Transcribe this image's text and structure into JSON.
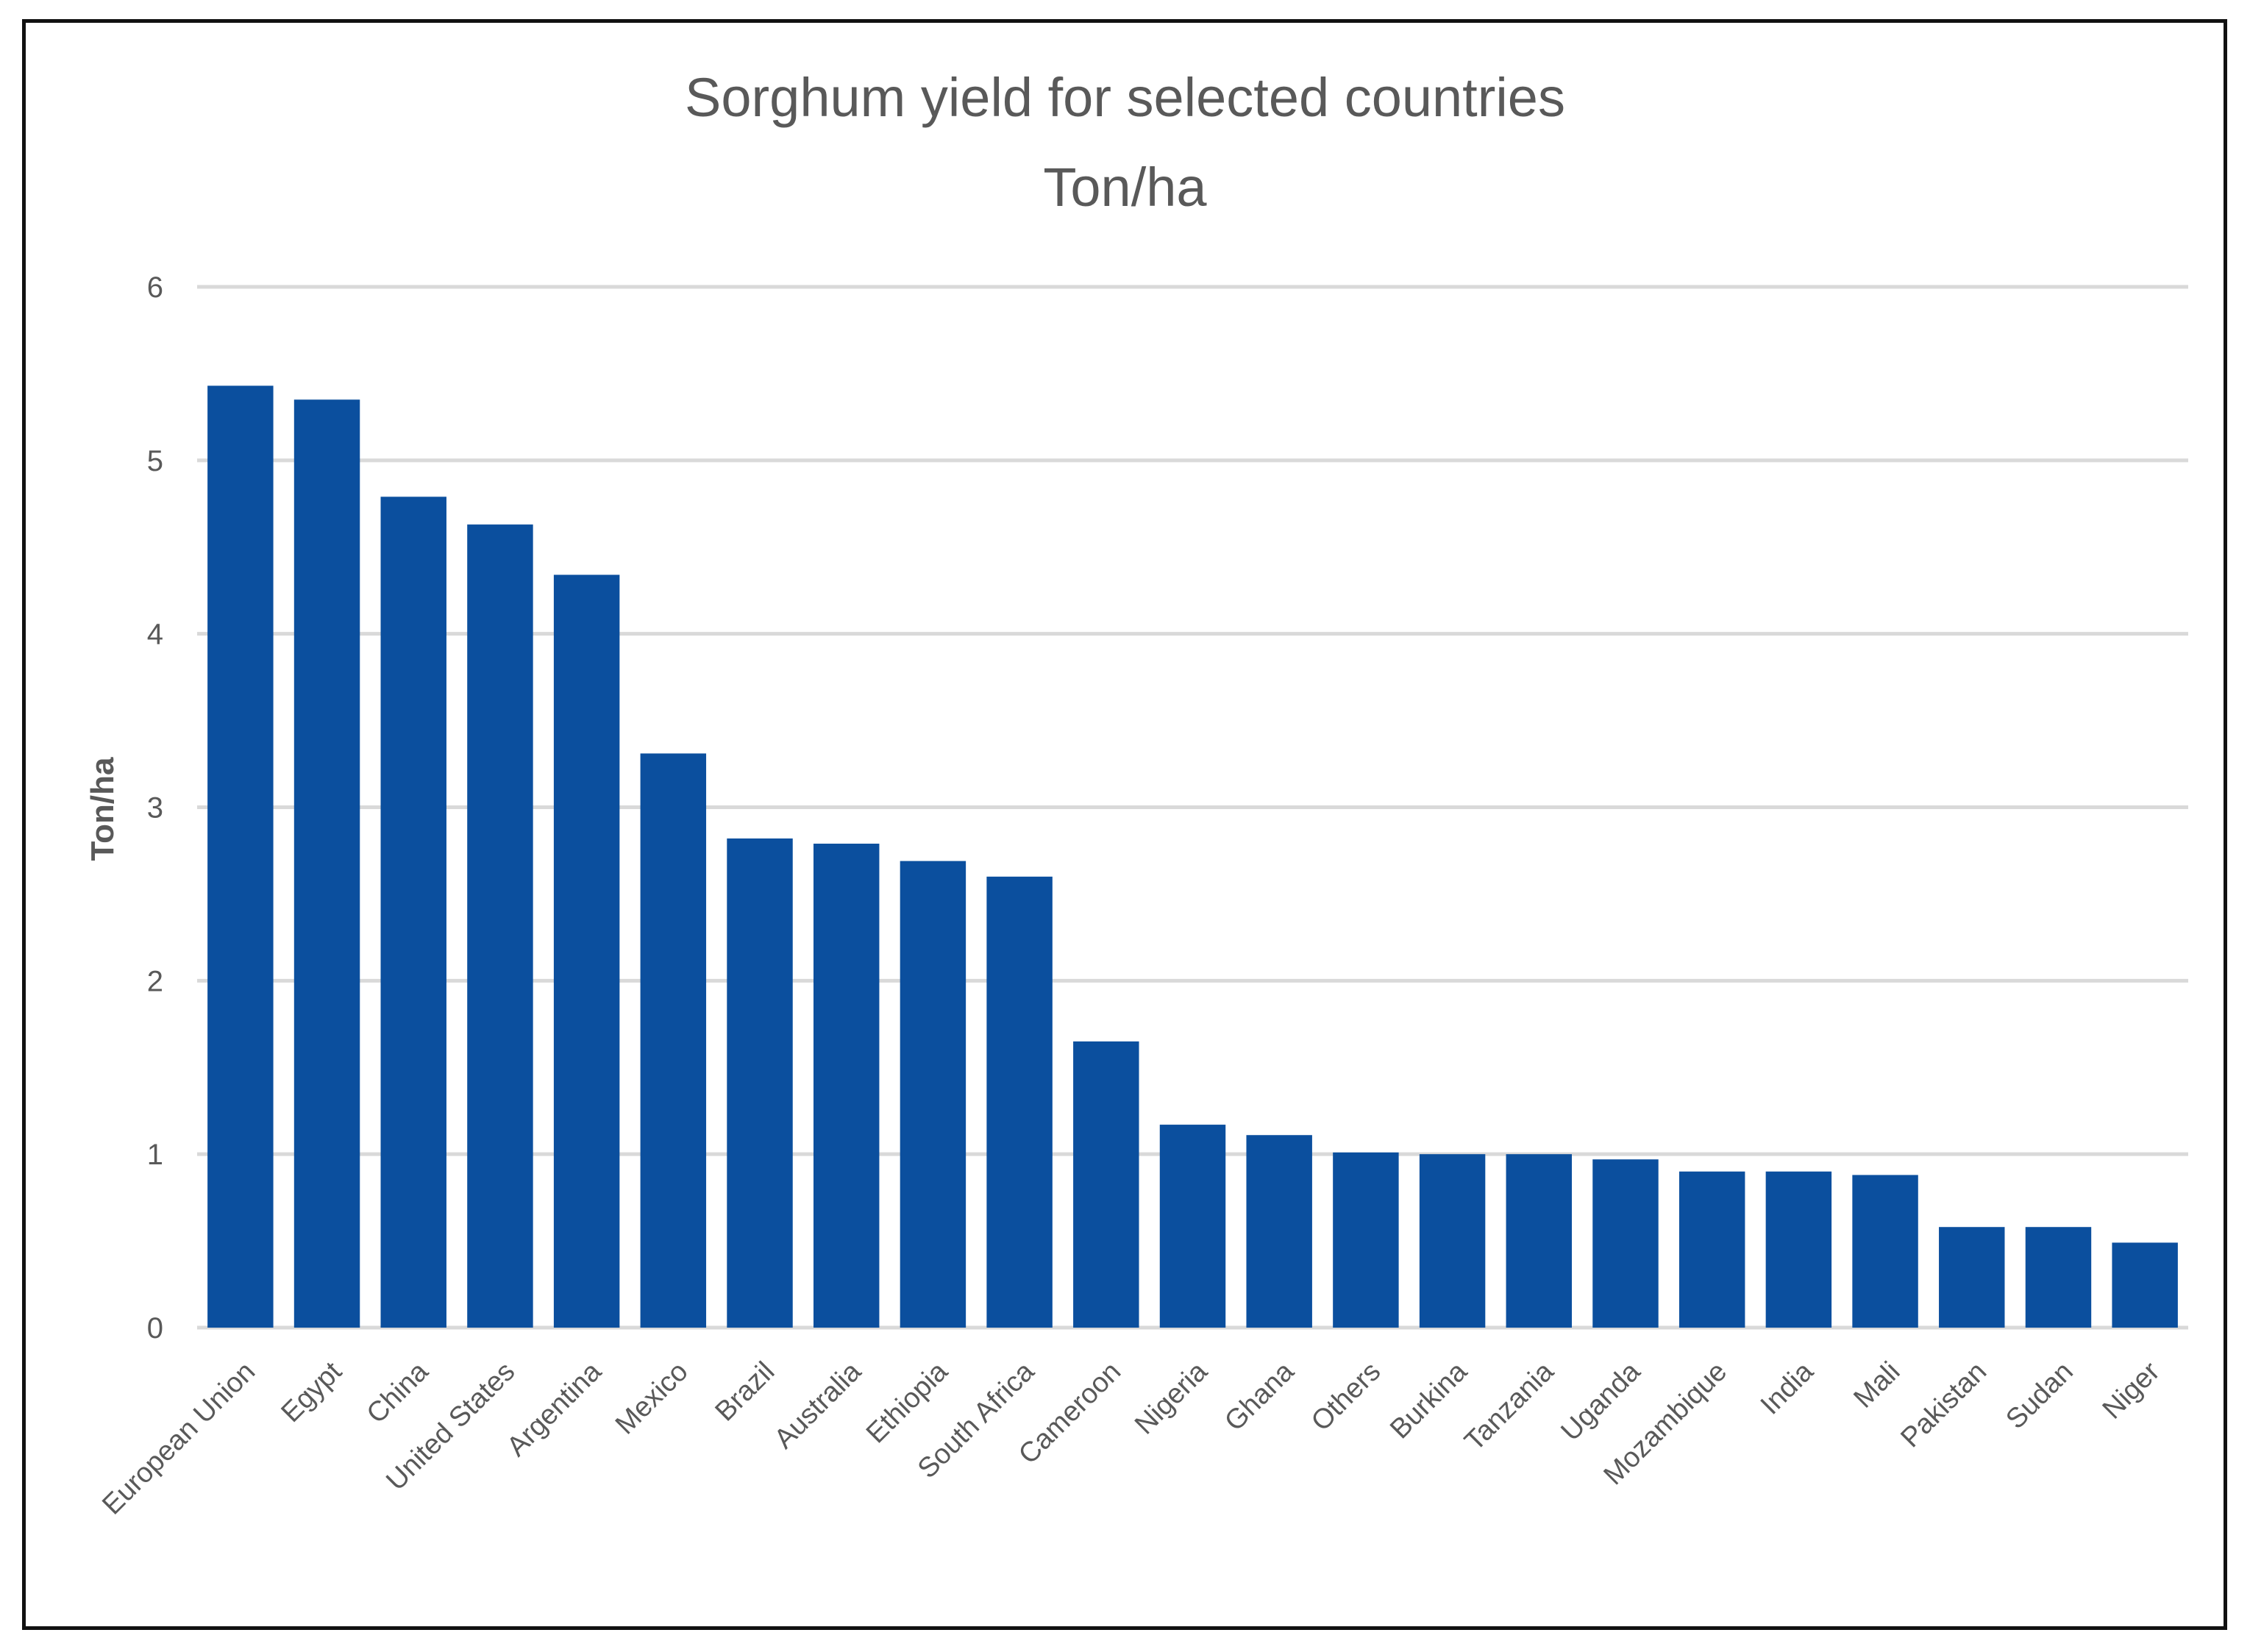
{
  "chart_data": {
    "type": "bar",
    "title": "Sorghum yield for selected countries",
    "subtitle": "Ton/ha",
    "xlabel": "",
    "ylabel": "Ton/ha",
    "ylim": [
      0,
      6
    ],
    "yticks": [
      0,
      1,
      2,
      3,
      4,
      5,
      6
    ],
    "grid": true,
    "bar_color": "#0b4f9e",
    "categories": [
      "European Union",
      "Egypt",
      "China",
      "United States",
      "Argentina",
      "Mexico",
      "Brazil",
      "Australia",
      "Ethiopia",
      "South Africa",
      "Cameroon",
      "Nigeria",
      "Ghana",
      "Others",
      "Burkina",
      "Tanzania",
      "Uganda",
      "Mozambique",
      "India",
      "Mali",
      "Pakistan",
      "Sudan",
      "Niger"
    ],
    "values": [
      5.43,
      5.35,
      4.79,
      4.63,
      4.34,
      3.31,
      2.82,
      2.79,
      2.69,
      2.6,
      1.65,
      1.17,
      1.11,
      1.01,
      1.0,
      1.0,
      0.97,
      0.9,
      0.9,
      0.88,
      0.58,
      0.58,
      0.49
    ]
  }
}
